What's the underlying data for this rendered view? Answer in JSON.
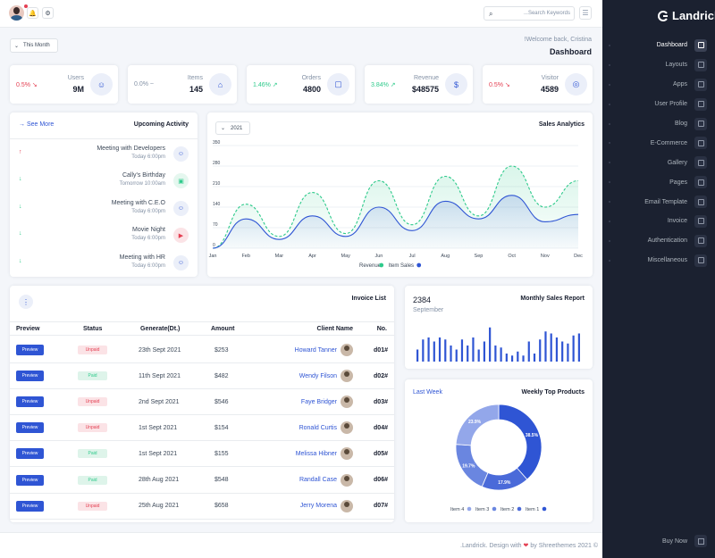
{
  "brand": {
    "name": "Landrick"
  },
  "sidebar": {
    "items": [
      {
        "label": "Dashboard",
        "icon": "home-icon",
        "active": true
      },
      {
        "label": "Layouts",
        "icon": "layout-icon"
      },
      {
        "label": "Apps",
        "icon": "apps-icon"
      },
      {
        "label": "User Profile",
        "icon": "user-icon"
      },
      {
        "label": "Blog",
        "icon": "blog-icon"
      },
      {
        "label": "E-Commerce",
        "icon": "cart-icon"
      },
      {
        "label": "Gallery",
        "icon": "camera-icon"
      },
      {
        "label": "Pages",
        "icon": "file-icon"
      },
      {
        "label": "Email Template",
        "icon": "mail-icon"
      },
      {
        "label": "Invoice",
        "icon": "receipt-icon"
      },
      {
        "label": "Authentication",
        "icon": "lock-icon"
      },
      {
        "label": "Miscellaneous",
        "icon": "layers-icon"
      }
    ],
    "buy_now": "Buy Now"
  },
  "topbar": {
    "search_placeholder": "...Search Keywords"
  },
  "header": {
    "period": "This Month",
    "welcome": "!Welcome back, Cristina",
    "title": "Dashboard"
  },
  "stats": [
    {
      "name": "Users",
      "value": "9M",
      "change": "0.5%",
      "trend": "down",
      "color": "#e43f52",
      "icon": "users-icon"
    },
    {
      "name": "Items",
      "value": "145",
      "change": "0.0%",
      "trend": "flat",
      "color": "#8492a6",
      "icon": "store-icon"
    },
    {
      "name": "Orders",
      "value": "4800",
      "change": "1.46%",
      "trend": "up",
      "color": "#2eca8b",
      "icon": "bag-icon"
    },
    {
      "name": "Revenue",
      "value": "$48575",
      "change": "3.84%",
      "trend": "up",
      "color": "#2eca8b",
      "icon": "dollar-icon"
    },
    {
      "name": "Visitor",
      "value": "4589",
      "change": "0.5%",
      "trend": "down",
      "color": "#e43f52",
      "icon": "user-circle-icon"
    }
  ],
  "activity": {
    "title": "Upcoming Activity",
    "see_more": "See More",
    "items": [
      {
        "title": "Meeting with Developers",
        "time": "Today 6:00pm",
        "arrow": "↑",
        "arrow_color": "#e43f52",
        "icon": "users-icon",
        "bg": "#ebeff9",
        "fg": "#2f55d4"
      },
      {
        "title": "Cally's Birthday",
        "time": "Tomorrow 10:00am",
        "arrow": "↓",
        "arrow_color": "#2eca8b",
        "icon": "gift-icon",
        "bg": "#e5f7ef",
        "fg": "#2eca8b"
      },
      {
        "title": "Meeting with C.E.O",
        "time": "Today 6:00pm",
        "arrow": "↓",
        "arrow_color": "#2eca8b",
        "icon": "users-icon",
        "bg": "#ebeff9",
        "fg": "#2f55d4"
      },
      {
        "title": "Movie Night",
        "time": "Today 6:00pm",
        "arrow": "↓",
        "arrow_color": "#2eca8b",
        "icon": "film-icon",
        "bg": "#fbe3e6",
        "fg": "#e43f52"
      },
      {
        "title": "Meeting with HR",
        "time": "Today 6:00pm",
        "arrow": "↓",
        "arrow_color": "#2eca8b",
        "icon": "users-icon",
        "bg": "#ebeff9",
        "fg": "#2f55d4"
      }
    ]
  },
  "sales": {
    "title": "Sales Analytics",
    "year": "2021"
  },
  "invoice": {
    "title": "Invoice List",
    "headers": {
      "preview": "Preview",
      "status": "Status",
      "generate": "Generate(Dt.)",
      "amount": "Amount",
      "client": "Client Name",
      "no": "No."
    },
    "preview_label": "Preview",
    "rows": [
      {
        "status": "Unpaid",
        "date": "23th Sept 2021",
        "amount": "$253",
        "client": "Howard Tanner",
        "no": "d01#"
      },
      {
        "status": "Paid",
        "date": "11th Sept 2021",
        "amount": "$482",
        "client": "Wendy Filson",
        "no": "d02#"
      },
      {
        "status": "Unpaid",
        "date": "2nd Sept 2021",
        "amount": "$546",
        "client": "Faye Bridger",
        "no": "d03#"
      },
      {
        "status": "Unpaid",
        "date": "1st Sept 2021",
        "amount": "$154",
        "client": "Ronald Curtis",
        "no": "d04#"
      },
      {
        "status": "Paid",
        "date": "1st Sept 2021",
        "amount": "$155",
        "client": "Melissa Hibner",
        "no": "d05#"
      },
      {
        "status": "Paid",
        "date": "28th Aug 2021",
        "amount": "$548",
        "client": "Randall Case",
        "no": "d06#"
      },
      {
        "status": "Unpaid",
        "date": "25th Aug 2021",
        "amount": "$658",
        "client": "Jerry Morena",
        "no": "d07#"
      }
    ]
  },
  "monthly": {
    "title": "Monthly Sales Report",
    "value": "2384",
    "month": "September"
  },
  "weekly": {
    "title": "Weekly Top Products",
    "period": "Last Week"
  },
  "footer": {
    "text_before": ".Landrick. Design with",
    "text_after": "by Shreethemes 2021 ©"
  },
  "colors": {
    "primary": "#2f55d4",
    "success": "#2eca8b",
    "danger": "#e43f52",
    "sidebar": "#1b2130"
  },
  "chart_data": [
    {
      "type": "line",
      "title": "Sales Analytics",
      "x": [
        "Jan",
        "Feb",
        "Mar",
        "Apr",
        "May",
        "Jun",
        "Jul",
        "Aug",
        "Sep",
        "Oct",
        "Nov",
        "Dec"
      ],
      "yticks": [
        0,
        70,
        140,
        210,
        280,
        350
      ],
      "ylim": [
        0,
        350
      ],
      "series": [
        {
          "name": "Revenue",
          "color": "#2eca8b",
          "style": "dashed",
          "values": [
            0,
            150,
            40,
            190,
            50,
            230,
            80,
            245,
            110,
            280,
            140,
            230
          ]
        },
        {
          "name": "Item Sales",
          "color": "#2f55d4",
          "style": "solid",
          "values": [
            0,
            100,
            30,
            110,
            40,
            140,
            60,
            160,
            100,
            180,
            90,
            115
          ]
        }
      ],
      "legend": "bottom"
    },
    {
      "type": "bar",
      "title": "Monthly Sales Report",
      "values": [
        30,
        55,
        60,
        50,
        60,
        55,
        40,
        30,
        55,
        40,
        60,
        30,
        50,
        85,
        40,
        35,
        20,
        15,
        25,
        15,
        50,
        20,
        55,
        75,
        70,
        60,
        50,
        45,
        65,
        70
      ]
    },
    {
      "type": "pie",
      "title": "Weekly Top Products",
      "donut": true,
      "slices": [
        {
          "label": "Item 1",
          "value": 38.5,
          "color": "#2f55d4"
        },
        {
          "label": "Item 2",
          "value": 17.9,
          "color": "#4a6ad9"
        },
        {
          "label": "Item 3",
          "value": 19.7,
          "color": "#6a86e0"
        },
        {
          "label": "Item 4",
          "value": 23.9,
          "color": "#93a7ea"
        }
      ],
      "legend_order": [
        "Item 4",
        "Item 3",
        "Item 2",
        "Item 1"
      ]
    }
  ]
}
